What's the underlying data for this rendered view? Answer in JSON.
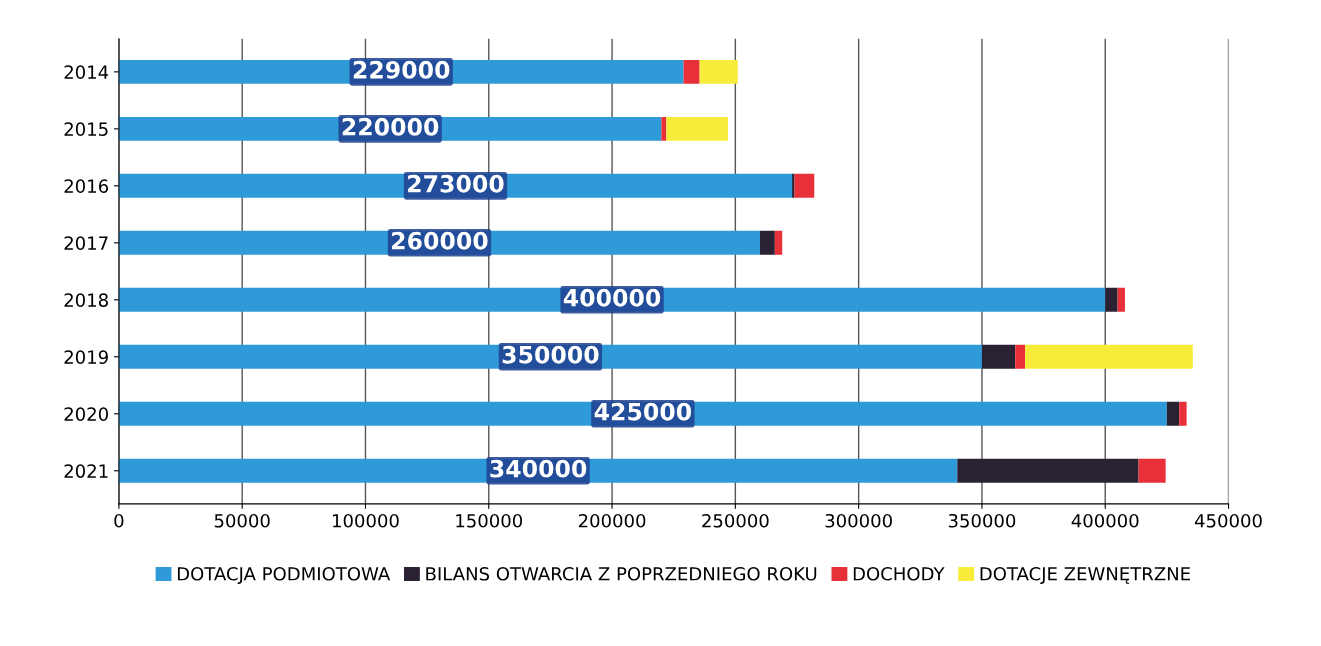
{
  "chart_data": {
    "type": "bar",
    "orientation": "horizontal",
    "stacked": true,
    "categories": [
      "2014",
      "2015",
      "2016",
      "2017",
      "2018",
      "2019",
      "2020",
      "2021"
    ],
    "series": [
      {
        "name": "DOTACJA PODMIOTOWA",
        "color": "#2e9ad8",
        "values": [
          229000,
          220000,
          273000,
          260000,
          400000,
          350000,
          425000,
          340000
        ],
        "value_labels": [
          "229000",
          "220000",
          "273000",
          "260000",
          "400000",
          "350000",
          "425000",
          "340000"
        ]
      },
      {
        "name": "BILANS OTWARCIA Z POPRZEDNIEGO ROKU",
        "color": "#2a2233",
        "values": [
          0,
          0,
          1000,
          6000,
          5000,
          13500,
          5000,
          73500
        ]
      },
      {
        "name": "DOCHODY",
        "color": "#e8303a",
        "values": [
          6500,
          2000,
          8000,
          3000,
          3000,
          4000,
          3000,
          11000
        ]
      },
      {
        "name": "DOTACJE ZEWNĘTRZNE",
        "color": "#f8ec3a",
        "values": [
          15500,
          25000,
          0,
          0,
          0,
          68000,
          0,
          0
        ]
      }
    ],
    "xlim": [
      0,
      450000
    ],
    "xticks": [
      0,
      50000,
      100000,
      150000,
      200000,
      250000,
      300000,
      350000,
      400000,
      450000
    ],
    "grid": "x",
    "legend": "bottom"
  }
}
